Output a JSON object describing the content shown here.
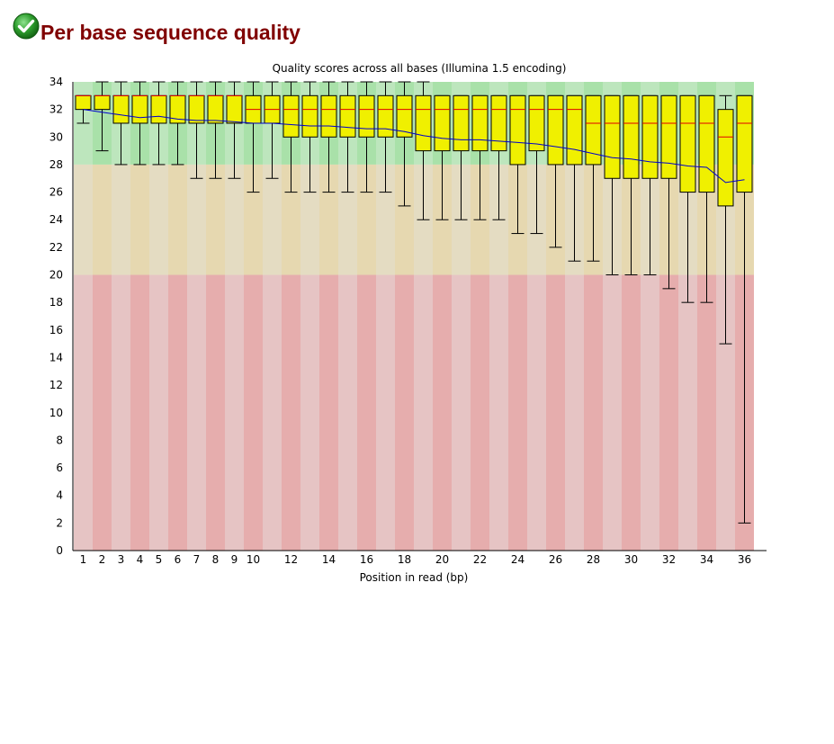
{
  "header": {
    "title": "Per base sequence quality",
    "status_icon": "check-circle-icon",
    "status_color": "#2e9e2e"
  },
  "chart_data": {
    "type": "box",
    "title": "Quality scores across all bases (Illumina 1.5 encoding)",
    "xlabel": "Position in read (bp)",
    "ylabel": "",
    "ylim": [
      0,
      34
    ],
    "yticks": [
      0,
      2,
      4,
      6,
      8,
      10,
      12,
      14,
      16,
      18,
      20,
      22,
      24,
      26,
      28,
      30,
      32,
      34
    ],
    "categories": [
      "1",
      "2",
      "3",
      "4",
      "5",
      "6",
      "7",
      "8",
      "9",
      "10",
      "11",
      "12",
      "13",
      "14",
      "15",
      "16",
      "17",
      "18",
      "19",
      "20",
      "21",
      "22",
      "23",
      "24",
      "25",
      "26",
      "27",
      "28",
      "29",
      "30",
      "31",
      "32",
      "33",
      "34",
      "35",
      "36"
    ],
    "xtick_labels": [
      "1",
      "2",
      "3",
      "4",
      "5",
      "6",
      "7",
      "8",
      "9",
      "10",
      "",
      "12",
      "",
      "14",
      "",
      "16",
      "",
      "18",
      "",
      "20",
      "",
      "22",
      "",
      "24",
      "",
      "26",
      "",
      "28",
      "",
      "30",
      "",
      "32",
      "",
      "34",
      "",
      "36"
    ],
    "boxes": [
      {
        "q1": 32,
        "median": 33,
        "q3": 33,
        "lower": 31,
        "upper": 33
      },
      {
        "q1": 32,
        "median": 33,
        "q3": 33,
        "lower": 29,
        "upper": 34
      },
      {
        "q1": 31,
        "median": 33,
        "q3": 33,
        "lower": 28,
        "upper": 34
      },
      {
        "q1": 31,
        "median": 33,
        "q3": 33,
        "lower": 28,
        "upper": 34
      },
      {
        "q1": 31,
        "median": 33,
        "q3": 33,
        "lower": 28,
        "upper": 34
      },
      {
        "q1": 31,
        "median": 33,
        "q3": 33,
        "lower": 28,
        "upper": 34
      },
      {
        "q1": 31,
        "median": 33,
        "q3": 33,
        "lower": 27,
        "upper": 34
      },
      {
        "q1": 31,
        "median": 33,
        "q3": 33,
        "lower": 27,
        "upper": 34
      },
      {
        "q1": 31,
        "median": 33,
        "q3": 33,
        "lower": 27,
        "upper": 34
      },
      {
        "q1": 31,
        "median": 32,
        "q3": 33,
        "lower": 26,
        "upper": 34
      },
      {
        "q1": 31,
        "median": 32,
        "q3": 33,
        "lower": 27,
        "upper": 34
      },
      {
        "q1": 30,
        "median": 32,
        "q3": 33,
        "lower": 26,
        "upper": 34
      },
      {
        "q1": 30,
        "median": 32,
        "q3": 33,
        "lower": 26,
        "upper": 34
      },
      {
        "q1": 30,
        "median": 32,
        "q3": 33,
        "lower": 26,
        "upper": 34
      },
      {
        "q1": 30,
        "median": 32,
        "q3": 33,
        "lower": 26,
        "upper": 34
      },
      {
        "q1": 30,
        "median": 32,
        "q3": 33,
        "lower": 26,
        "upper": 34
      },
      {
        "q1": 30,
        "median": 32,
        "q3": 33,
        "lower": 26,
        "upper": 34
      },
      {
        "q1": 30,
        "median": 32,
        "q3": 33,
        "lower": 25,
        "upper": 34
      },
      {
        "q1": 29,
        "median": 32,
        "q3": 33,
        "lower": 24,
        "upper": 34
      },
      {
        "q1": 29,
        "median": 32,
        "q3": 33,
        "lower": 24,
        "upper": 33
      },
      {
        "q1": 29,
        "median": 32,
        "q3": 33,
        "lower": 24,
        "upper": 33
      },
      {
        "q1": 29,
        "median": 32,
        "q3": 33,
        "lower": 24,
        "upper": 33
      },
      {
        "q1": 29,
        "median": 32,
        "q3": 33,
        "lower": 24,
        "upper": 33
      },
      {
        "q1": 28,
        "median": 32,
        "q3": 33,
        "lower": 23,
        "upper": 33
      },
      {
        "q1": 29,
        "median": 32,
        "q3": 33,
        "lower": 23,
        "upper": 33
      },
      {
        "q1": 28,
        "median": 32,
        "q3": 33,
        "lower": 22,
        "upper": 33
      },
      {
        "q1": 28,
        "median": 32,
        "q3": 33,
        "lower": 21,
        "upper": 33
      },
      {
        "q1": 28,
        "median": 31,
        "q3": 33,
        "lower": 21,
        "upper": 33
      },
      {
        "q1": 27,
        "median": 31,
        "q3": 33,
        "lower": 20,
        "upper": 33
      },
      {
        "q1": 27,
        "median": 31,
        "q3": 33,
        "lower": 20,
        "upper": 33
      },
      {
        "q1": 27,
        "median": 31,
        "q3": 33,
        "lower": 20,
        "upper": 33
      },
      {
        "q1": 27,
        "median": 31,
        "q3": 33,
        "lower": 19,
        "upper": 33
      },
      {
        "q1": 26,
        "median": 31,
        "q3": 33,
        "lower": 18,
        "upper": 33
      },
      {
        "q1": 26,
        "median": 31,
        "q3": 33,
        "lower": 18,
        "upper": 33
      },
      {
        "q1": 25,
        "median": 30,
        "q3": 32,
        "lower": 15,
        "upper": 33
      },
      {
        "q1": 26,
        "median": 31,
        "q3": 33,
        "lower": 2,
        "upper": 33
      }
    ],
    "mean": [
      32.0,
      31.8,
      31.6,
      31.4,
      31.5,
      31.3,
      31.2,
      31.2,
      31.1,
      31.0,
      31.0,
      30.9,
      30.8,
      30.8,
      30.7,
      30.6,
      30.6,
      30.4,
      30.1,
      29.9,
      29.8,
      29.8,
      29.7,
      29.6,
      29.5,
      29.3,
      29.1,
      28.8,
      28.5,
      28.4,
      28.2,
      28.1,
      27.9,
      27.8,
      26.7,
      26.9
    ],
    "zones": [
      {
        "from": 28,
        "to": 34,
        "colors": [
          "#bde6bd",
          "#a9e1a9"
        ]
      },
      {
        "from": 20,
        "to": 28,
        "colors": [
          "#e4dcc2",
          "#e6d8b0"
        ]
      },
      {
        "from": 0,
        "to": 20,
        "colors": [
          "#e6c4c4",
          "#e6adad"
        ]
      }
    ],
    "colors": {
      "box_fill": "#f0f000",
      "box_edge": "#000000",
      "median": "#e00000",
      "mean_line": "#0000cc",
      "whisker": "#000000"
    },
    "grid": false,
    "legend": "none"
  }
}
